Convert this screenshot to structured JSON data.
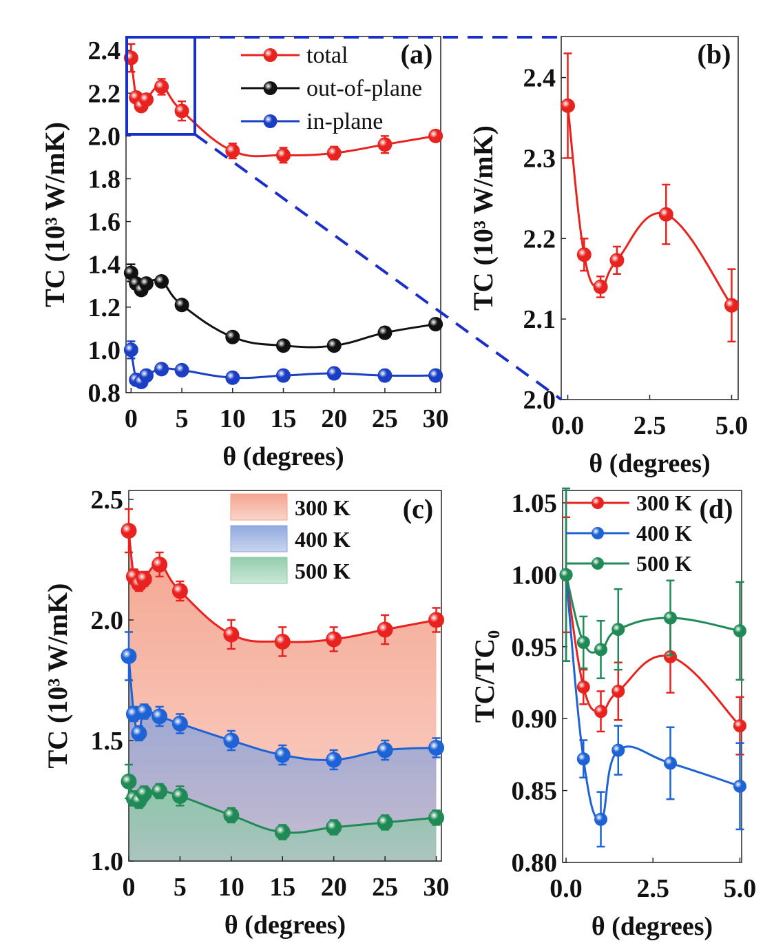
{
  "colors": {
    "red": "#e8231f",
    "black": "#111111",
    "blue": "#1a3fc4",
    "blue2": "#1e63d6",
    "green": "#1f8a55",
    "zoom_box": "#1a2fc8"
  },
  "chart_data": [
    {
      "panel": "(a)",
      "type": "line",
      "xlabel": "θ (degrees)",
      "ylabel": "TC (10³ W/mK)",
      "xlim": [
        -0.5,
        30.5
      ],
      "ylim": [
        0.8,
        2.465
      ],
      "xticks": [
        "0",
        "5",
        "10",
        "15",
        "20",
        "25",
        "30"
      ],
      "xtick_values": [
        0,
        5,
        10,
        15,
        20,
        25,
        30
      ],
      "yticks": [
        "0.8",
        "1.0",
        "1.2",
        "1.4",
        "1.6",
        "1.8",
        "2.0",
        "2.2",
        "2.4"
      ],
      "ytick_values": [
        0.8,
        1.0,
        1.2,
        1.4,
        1.6,
        1.8,
        2.0,
        2.2,
        2.4
      ],
      "x": [
        0,
        0.5,
        1,
        1.5,
        3,
        5,
        10,
        15,
        20,
        25,
        30
      ],
      "legend_position": "top-center",
      "series": [
        {
          "name": "total",
          "color": "#e8231f",
          "values": [
            2.365,
            2.18,
            2.14,
            2.17,
            2.23,
            2.117,
            1.93,
            1.91,
            1.92,
            1.96,
            2.0
          ],
          "errors": [
            0.065,
            0.02,
            0.013,
            0.017,
            0.037,
            0.045,
            0.035,
            0.035,
            0.03,
            0.04,
            0.02
          ]
        },
        {
          "name": "out-of-plane",
          "color": "#111111",
          "values": [
            1.36,
            1.31,
            1.28,
            1.31,
            1.32,
            1.21,
            1.06,
            1.02,
            1.02,
            1.08,
            1.12
          ],
          "errors": [
            0.04,
            0.02,
            0.02,
            0.02,
            0.02,
            0.02,
            0.02,
            0.02,
            0.02,
            0.02,
            0.02
          ]
        },
        {
          "name": "in-plane",
          "color": "#1a3fc4",
          "values": [
            1.0,
            0.86,
            0.85,
            0.88,
            0.91,
            0.905,
            0.87,
            0.88,
            0.89,
            0.88,
            0.88
          ],
          "errors": [
            0.04,
            0.02,
            0.02,
            0.02,
            0.02,
            0.02,
            0.02,
            0.02,
            0.02,
            0.02,
            0.02
          ]
        }
      ]
    },
    {
      "panel": "(b)",
      "type": "line",
      "xlabel": "θ (degrees)",
      "ylabel": "TC (10³ W/mK)",
      "xlim": [
        -0.2,
        5.2
      ],
      "ylim": [
        2.0,
        2.451
      ],
      "xticks": [
        "0.0",
        "2.5",
        "5.0"
      ],
      "xtick_values": [
        0,
        2.5,
        5
      ],
      "yticks": [
        "2.0",
        "2.1",
        "2.2",
        "2.3",
        "2.4"
      ],
      "ytick_values": [
        2.0,
        2.1,
        2.2,
        2.3,
        2.4
      ],
      "x": [
        0,
        0.5,
        1,
        1.5,
        3,
        5
      ],
      "series": [
        {
          "color": "#e8231f",
          "values": [
            2.365,
            2.18,
            2.14,
            2.173,
            2.23,
            2.117
          ],
          "errors": [
            0.065,
            0.02,
            0.013,
            0.017,
            0.037,
            0.045
          ]
        }
      ]
    },
    {
      "panel": "(c)",
      "type": "area",
      "xlabel": "θ (degrees)",
      "ylabel": "TC (10³ W/mK)",
      "xlim": [
        0,
        30.5
      ],
      "ylim": [
        1.0,
        2.537
      ],
      "xticks": [
        "0",
        "5",
        "10",
        "15",
        "20",
        "25",
        "30"
      ],
      "xtick_values": [
        0,
        5,
        10,
        15,
        20,
        25,
        30
      ],
      "yticks": [
        "1.0",
        "1.5",
        "2.0",
        "2.5"
      ],
      "ytick_values": [
        1.0,
        1.5,
        2.0,
        2.5
      ],
      "x": [
        0,
        0.5,
        1,
        1.5,
        3,
        5,
        10,
        15,
        20,
        25,
        30
      ],
      "legend_position": "top-center",
      "series": [
        {
          "name": "300 K",
          "color": "#e8231f",
          "fill": "#f4a08a",
          "values": [
            2.37,
            2.18,
            2.15,
            2.17,
            2.23,
            2.12,
            1.94,
            1.91,
            1.92,
            1.96,
            2.0
          ],
          "errors": [
            0.09,
            0.03,
            0.03,
            0.03,
            0.05,
            0.04,
            0.06,
            0.06,
            0.05,
            0.06,
            0.05
          ]
        },
        {
          "name": "400 K",
          "color": "#1e63d6",
          "fill": "#8aa4dc",
          "values": [
            1.85,
            1.61,
            1.53,
            1.62,
            1.6,
            1.57,
            1.5,
            1.44,
            1.42,
            1.46,
            1.47
          ],
          "errors": [
            0.1,
            0.03,
            0.03,
            0.03,
            0.04,
            0.04,
            0.04,
            0.04,
            0.04,
            0.04,
            0.04
          ]
        },
        {
          "name": "500 K",
          "color": "#1f8a55",
          "fill": "#8ccaa8",
          "values": [
            1.33,
            1.26,
            1.25,
            1.28,
            1.29,
            1.27,
            1.19,
            1.12,
            1.14,
            1.16,
            1.18
          ],
          "errors": [
            0.07,
            0.03,
            0.03,
            0.03,
            0.03,
            0.04,
            0.03,
            0.03,
            0.03,
            0.03,
            0.03
          ]
        }
      ]
    },
    {
      "panel": "(d)",
      "type": "line",
      "xlabel": "θ (degrees)",
      "ylabel": "TC/TC₀",
      "xlim": [
        -0.1,
        5.05
      ],
      "ylim": [
        0.8,
        1.0586
      ],
      "xticks": [
        "0.0",
        "2.5",
        "5.0"
      ],
      "xtick_values": [
        0,
        2.5,
        5
      ],
      "yticks": [
        "0.80",
        "0.85",
        "0.90",
        "0.95",
        "1.00",
        "1.05"
      ],
      "ytick_values": [
        0.8,
        0.85,
        0.9,
        0.95,
        1.0,
        1.05
      ],
      "x": [
        0,
        0.5,
        1,
        1.5,
        3,
        5
      ],
      "legend_position": "top-left",
      "series": [
        {
          "name": "300 K",
          "color": "#e8231f",
          "values": [
            1.0,
            0.922,
            0.905,
            0.919,
            0.943,
            0.895
          ],
          "errors": [
            0.04,
            0.012,
            0.014,
            0.02,
            0.025,
            0.02
          ]
        },
        {
          "name": "400 K",
          "color": "#1e63d6",
          "values": [
            1.0,
            0.872,
            0.83,
            0.878,
            0.869,
            0.853
          ],
          "errors": [
            0.06,
            0.013,
            0.019,
            0.017,
            0.025,
            0.03
          ]
        },
        {
          "name": "500 K",
          "color": "#1f8a55",
          "values": [
            1.0,
            0.953,
            0.948,
            0.962,
            0.97,
            0.961
          ],
          "errors": [
            0.06,
            0.018,
            0.02,
            0.028,
            0.026,
            0.034
          ]
        }
      ]
    }
  ]
}
